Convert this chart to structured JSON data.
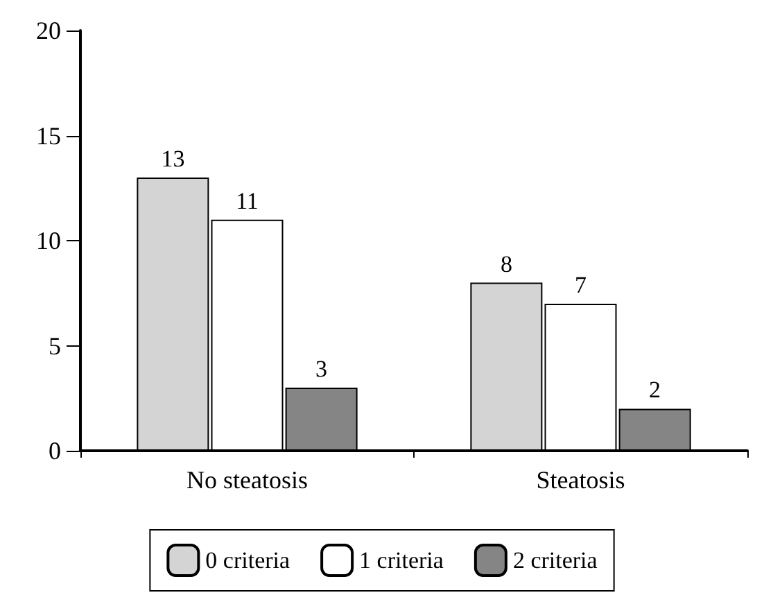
{
  "chart_data": {
    "type": "bar",
    "categories": [
      "No steatosis",
      "Steatosis"
    ],
    "series": [
      {
        "name": "0 criteria",
        "color": "#d4d4d4",
        "values": [
          13,
          8
        ]
      },
      {
        "name": "1 criteria",
        "color": "#ffffff",
        "values": [
          11,
          7
        ]
      },
      {
        "name": "2 criteria",
        "color": "#858585",
        "values": [
          3,
          2
        ]
      }
    ],
    "ylim": [
      0,
      20
    ],
    "yticks": [
      0,
      5,
      10,
      15,
      20
    ],
    "grid": false,
    "legend": "bottom",
    "data_labels": true
  }
}
